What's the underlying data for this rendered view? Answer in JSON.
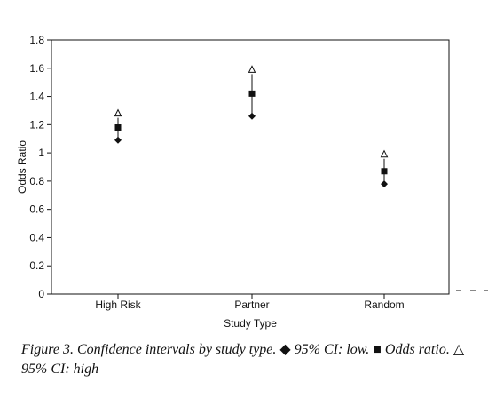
{
  "chart_data": {
    "type": "scatter",
    "xlabel": "Study Type",
    "ylabel": "Odds Ratio",
    "ylim": [
      0,
      1.8
    ],
    "yticks": [
      "0",
      "0.2",
      "0.4",
      "0.6",
      "0.8",
      "1",
      "1.2",
      "1.4",
      "1.6",
      "1.8"
    ],
    "categories": [
      "High Risk",
      "Partner",
      "Random"
    ],
    "grid": false,
    "series": [
      {
        "name": "95% CI: low",
        "marker": "diamond",
        "values": [
          1.09,
          1.26,
          0.78
        ]
      },
      {
        "name": "Odds ratio",
        "marker": "square",
        "values": [
          1.18,
          1.42,
          0.87
        ]
      },
      {
        "name": "95% CI: high",
        "marker": "triangle-open",
        "values": [
          1.28,
          1.59,
          0.99
        ]
      }
    ]
  },
  "caption": {
    "lead": "Figure 3. Confidence intervals by study type.",
    "low_symbol": "◆",
    "low_text": "95% CI: low.",
    "odds_symbol": "■",
    "odds_text": "Odds ratio.",
    "high_symbol": "△",
    "high_text": "95% CI: high"
  },
  "colors": {
    "ink": "#111111",
    "background": "#ffffff"
  }
}
